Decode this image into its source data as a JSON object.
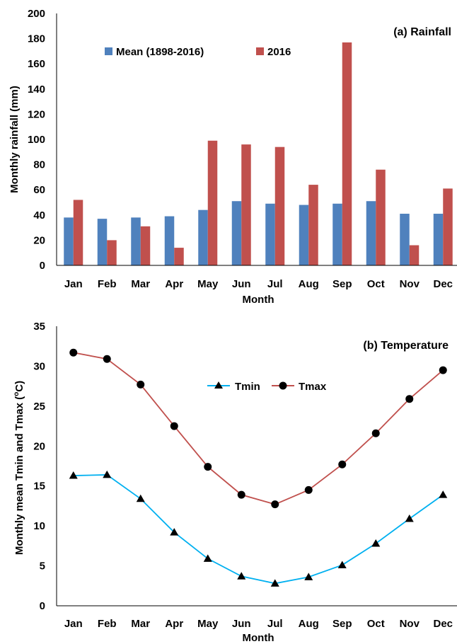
{
  "chart_data": [
    {
      "type": "bar",
      "title": "(a) Rainfall",
      "xlabel": "Month",
      "ylabel": "Monthly rainfall (mm)",
      "ylim": [
        0,
        200
      ],
      "yticks": [
        "0",
        "20",
        "40",
        "60",
        "80",
        "100",
        "120",
        "140",
        "160",
        "180",
        "200"
      ],
      "categories": [
        "Jan",
        "Feb",
        "Mar",
        "Apr",
        "May",
        "Jun",
        "Jul",
        "Aug",
        "Sep",
        "Oct",
        "Nov",
        "Dec"
      ],
      "legend_position": "top-left",
      "series": [
        {
          "name": "Mean (1898-2016)",
          "color": "#4f81bd",
          "values": [
            38,
            37,
            38,
            39,
            44,
            51,
            49,
            48,
            49,
            51,
            41,
            41
          ]
        },
        {
          "name": "2016",
          "color": "#c0504d",
          "values": [
            52,
            20,
            31,
            14,
            99,
            96,
            94,
            64,
            177,
            76,
            16,
            61
          ]
        }
      ]
    },
    {
      "type": "line",
      "title": "(b) Temperature",
      "xlabel": "Month",
      "ylabel": "Monthly mean Tmin and Tmax (",
      "ylabel_sup": "o",
      "ylabel_tail": "C)",
      "ylim": [
        0,
        35
      ],
      "yticks": [
        "0",
        "5",
        "10",
        "15",
        "20",
        "25",
        "30",
        "35"
      ],
      "categories": [
        "Jan",
        "Feb",
        "Mar",
        "Apr",
        "May",
        "Jun",
        "Jul",
        "Aug",
        "Sep",
        "Oct",
        "Nov",
        "Dec"
      ],
      "legend_position": "top-center",
      "series": [
        {
          "name": "Tmin",
          "color": "#00b0f0",
          "marker": "triangle",
          "values": [
            16.3,
            16.4,
            13.4,
            9.2,
            5.9,
            3.7,
            2.8,
            3.6,
            5.1,
            7.8,
            10.9,
            13.9
          ]
        },
        {
          "name": "Tmax",
          "color": "#c0504d",
          "marker": "circle",
          "values": [
            31.7,
            30.9,
            27.7,
            22.5,
            17.4,
            13.9,
            12.7,
            14.5,
            17.7,
            21.6,
            25.9,
            29.5
          ]
        }
      ]
    }
  ]
}
